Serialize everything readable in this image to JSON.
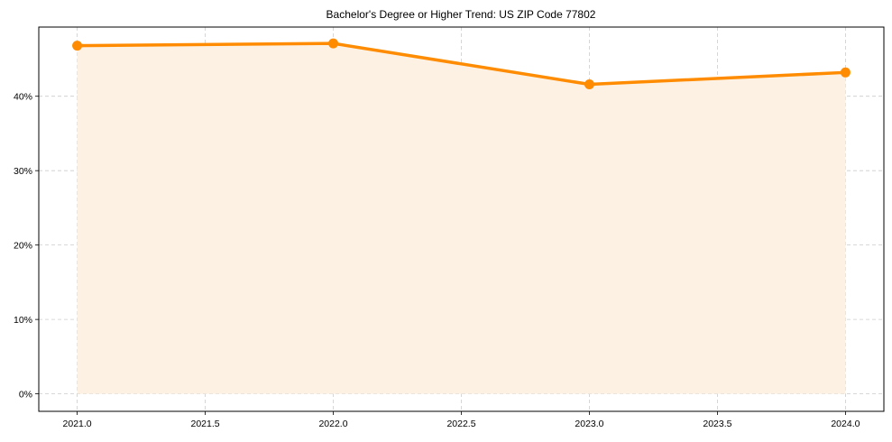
{
  "chart_data": {
    "type": "line",
    "title": "Bachelor's Degree or Higher Trend: US ZIP Code 77802",
    "xlabel": "",
    "ylabel": "",
    "x": [
      2021,
      2022,
      2023,
      2024
    ],
    "series": [
      {
        "name": "Bachelor's Degree or Higher",
        "values": [
          46.8,
          47.1,
          41.6,
          43.2
        ],
        "color": "#FF8C00",
        "fill_color": "#FDF1E4",
        "markers": true
      }
    ],
    "x_ticks": [
      "2021.0",
      "2021.5",
      "2022.0",
      "2022.5",
      "2023.0",
      "2023.5",
      "2024.0"
    ],
    "y_ticks": [
      "0%",
      "10%",
      "20%",
      "30%",
      "40%"
    ],
    "xlim": [
      2020.85,
      2024.15
    ],
    "ylim": [
      -2.35,
      49.3
    ],
    "grid": true,
    "legend": null,
    "area_fill": true
  }
}
